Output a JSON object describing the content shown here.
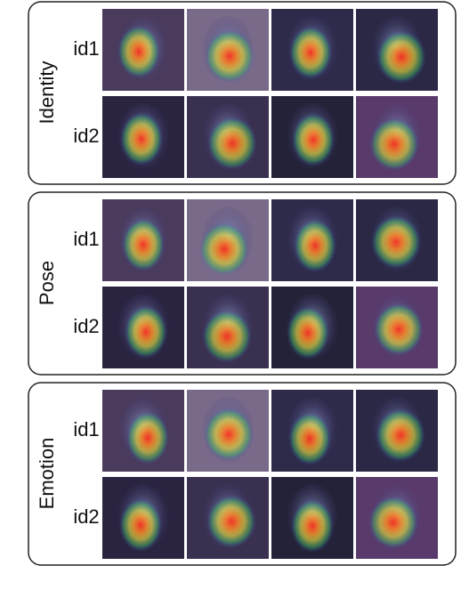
{
  "panels": [
    {
      "label": "Identity",
      "rows": [
        "id1",
        "id2"
      ]
    },
    {
      "label": "Pose",
      "rows": [
        "id1",
        "id2"
      ]
    },
    {
      "label": "Emotion",
      "rows": [
        "id1",
        "id2"
      ]
    }
  ]
}
